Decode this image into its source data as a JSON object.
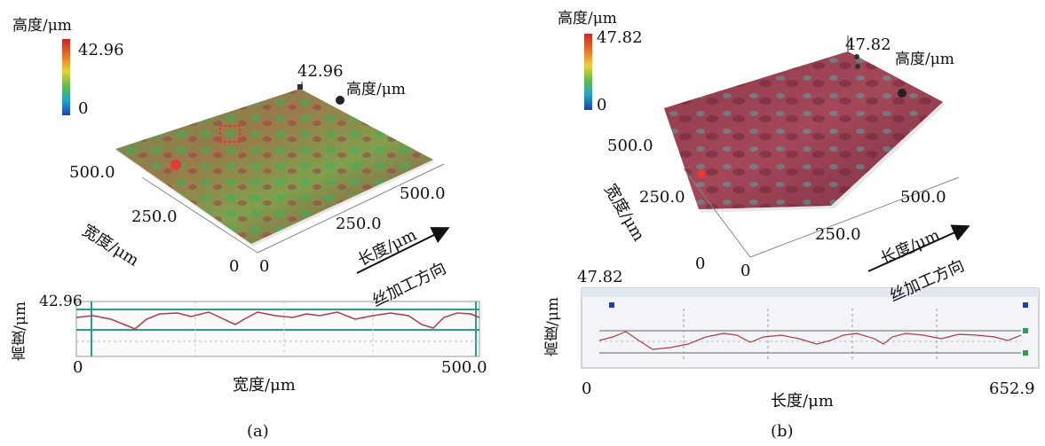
{
  "panel_a": {
    "colorbar_title": "高度/μm",
    "colorbar_max": "42.96",
    "colorbar_min": "0",
    "peak_value": "42.96",
    "z_axis_label": "高度/μm",
    "width_axis_label": "宽度/μm",
    "width_ticks": [
      "500.0",
      "250.0",
      "0"
    ],
    "length_ticks": [
      "0",
      "250.0",
      "500.0"
    ],
    "length_axis_label": "长度/μm",
    "direction_label": "丝加工方向",
    "profile_ymax": "42.96",
    "profile_ylabel": "高度/μm",
    "profile_xmin": "0",
    "profile_xmax": "500.0",
    "profile_xlabel": "宽度/μm",
    "caption": "(a)"
  },
  "panel_b": {
    "colorbar_title": "高度/μm",
    "colorbar_max": "47.82",
    "colorbar_min": "0",
    "peak_value": "47.82",
    "z_axis_label": "高度/μm",
    "width_axis_label": "宽度/μm",
    "width_ticks": [
      "500.0",
      "250.0",
      "0"
    ],
    "length_ticks": [
      "0",
      "250.0",
      "500.0"
    ],
    "length_axis_label": "长度/μm",
    "direction_label": "丝加工方向",
    "profile_ymax": "47.82",
    "profile_ylabel": "高度/μm",
    "profile_xmin": "0",
    "profile_xmax": "652.9",
    "profile_xlabel": "长度/μm",
    "caption": "(b)"
  },
  "colors": {
    "surface_a": "#7d8a4a",
    "surface_b": "#8b3a4a",
    "profile_line": "#b23a48",
    "teal_line": "#2a9d8f",
    "arrow": "#111111"
  }
}
